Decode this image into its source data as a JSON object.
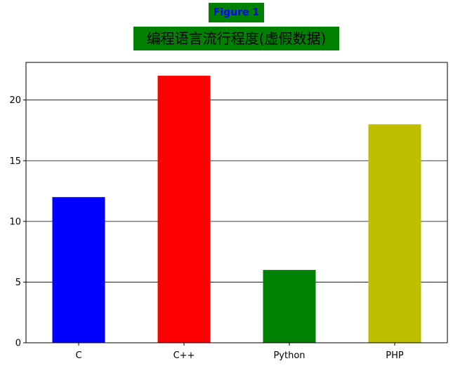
{
  "figure_label": "Figure 1",
  "chart_data": {
    "type": "bar",
    "title": "编程语言流行程度(虚假数据)",
    "categories": [
      "C",
      "C++",
      "Python",
      "PHP"
    ],
    "values": [
      12,
      22,
      6,
      18
    ],
    "colors": [
      "#0000ff",
      "#ff0000",
      "#008000",
      "#bfbf00"
    ],
    "ylim": [
      0,
      23.1
    ],
    "yticks": [
      0,
      5,
      10,
      15,
      20
    ],
    "grid": "horizontal",
    "xlabel": "",
    "ylabel": ""
  }
}
